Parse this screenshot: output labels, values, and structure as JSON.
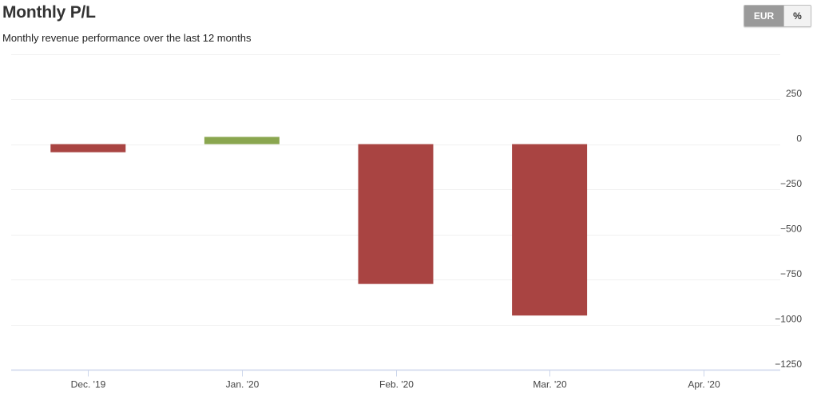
{
  "header": {
    "title": "Monthly P/L",
    "subtitle": "Monthly revenue performance over the last 12 months"
  },
  "toggle": {
    "eur_label": "EUR",
    "pct_label": "%",
    "selected": "EUR"
  },
  "colors": {
    "negative": "#a94442",
    "positive": "#8aa64f",
    "grid": "#f1f1f1",
    "axis": "#ccd6eb"
  },
  "chart_data": {
    "type": "bar",
    "title": "Monthly P/L",
    "subtitle": "Monthly revenue performance over the last 12 months",
    "categories": [
      "Dec. '19",
      "Jan. '20",
      "Feb. '20",
      "Mar. '20",
      "Apr. '20"
    ],
    "values": [
      -45,
      40,
      -775,
      -950,
      null
    ],
    "ylim": [
      -1250,
      500
    ],
    "y_ticks": [
      {
        "value": 250,
        "label": "250"
      },
      {
        "value": 0,
        "label": "0"
      },
      {
        "value": -250,
        "label": "−250"
      },
      {
        "value": -500,
        "label": "−500"
      },
      {
        "value": -750,
        "label": "−750"
      },
      {
        "value": -1000,
        "label": "−1000"
      },
      {
        "value": -1250,
        "label": "−1250"
      }
    ],
    "grid_values": [
      500,
      250,
      0,
      -250,
      -500,
      -750,
      -1000
    ],
    "y_axis_side": "right",
    "grid": true,
    "legend": "none"
  }
}
